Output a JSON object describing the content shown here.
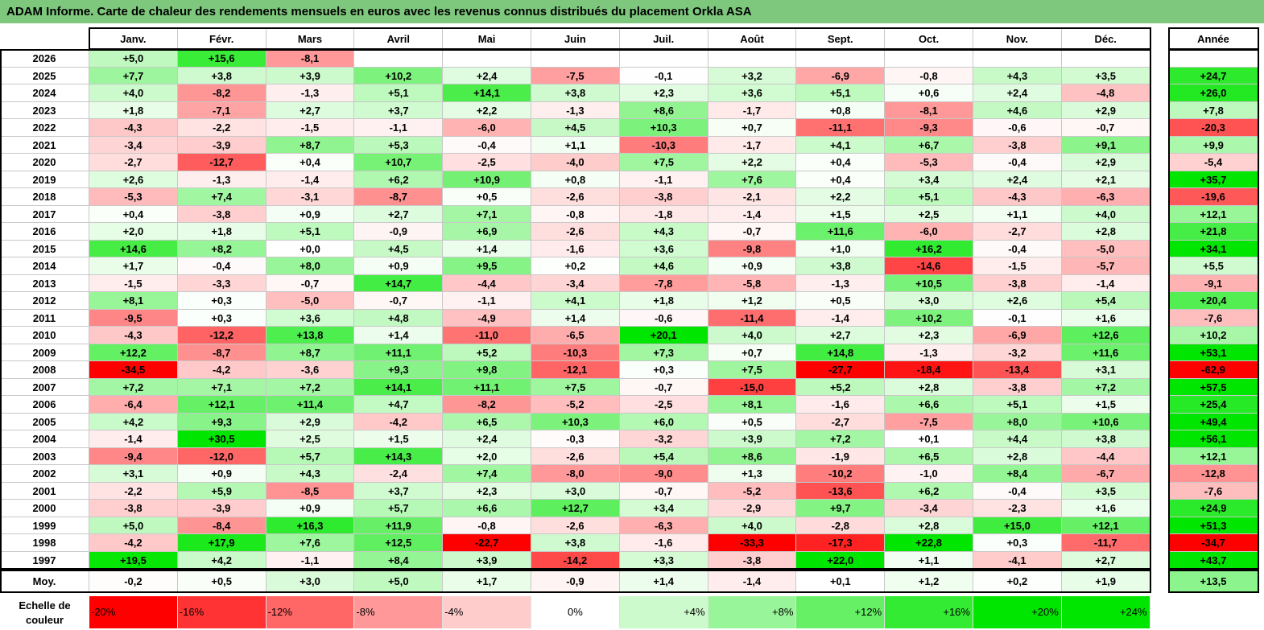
{
  "title": "ADAM Informe. Carte de chaleur des rendements mensuels en euros avec les revenus connus distribués du placement Orkla ASA",
  "chart_data": {
    "type": "heatmap",
    "columns": [
      "Janv.",
      "Févr.",
      "Mars",
      "Avril",
      "Mai",
      "Juin",
      "Juil.",
      "Août",
      "Sept.",
      "Oct.",
      "Nov.",
      "Déc."
    ],
    "year_header": "Année",
    "rows": [
      {
        "year": "2026",
        "values": [
          "+5,0",
          "+15,6",
          "-8,1",
          "",
          "",
          "",
          "",
          "",
          "",
          "",
          "",
          ""
        ],
        "annual": ""
      },
      {
        "year": "2025",
        "values": [
          "+7,7",
          "+3,8",
          "+3,9",
          "+10,2",
          "+2,4",
          "-7,5",
          "-0,1",
          "+3,2",
          "-6,9",
          "-0,8",
          "+4,3",
          "+3,5"
        ],
        "annual": "+24,7"
      },
      {
        "year": "2024",
        "values": [
          "+4,0",
          "-8,2",
          "-1,3",
          "+5,1",
          "+14,1",
          "+3,8",
          "+2,3",
          "+3,6",
          "+5,1",
          "+0,6",
          "+2,4",
          "-4,8"
        ],
        "annual": "+26,0"
      },
      {
        "year": "2023",
        "values": [
          "+1,8",
          "-7,1",
          "+2,7",
          "+3,7",
          "+2,2",
          "-1,3",
          "+8,6",
          "-1,7",
          "+0,8",
          "-8,1",
          "+4,6",
          "+2,9"
        ],
        "annual": "+7,8"
      },
      {
        "year": "2022",
        "values": [
          "-4,3",
          "-2,2",
          "-1,5",
          "-1,1",
          "-6,0",
          "+4,5",
          "+10,3",
          "+0,7",
          "-11,1",
          "-9,3",
          "-0,6",
          "-0,7"
        ],
        "annual": "-20,3"
      },
      {
        "year": "2021",
        "values": [
          "-3,4",
          "-3,9",
          "+8,7",
          "+5,3",
          "-0,4",
          "+1,1",
          "-10,3",
          "-1,7",
          "+4,1",
          "+6,7",
          "-3,8",
          "+9,1"
        ],
        "annual": "+9,9"
      },
      {
        "year": "2020",
        "values": [
          "-2,7",
          "-12,7",
          "+0,4",
          "+10,7",
          "-2,5",
          "-4,0",
          "+7,5",
          "+2,2",
          "+0,4",
          "-5,3",
          "-0,4",
          "+2,9"
        ],
        "annual": "-5,4"
      },
      {
        "year": "2019",
        "values": [
          "+2,6",
          "-1,3",
          "-1,4",
          "+6,2",
          "+10,9",
          "+0,8",
          "-1,1",
          "+7,6",
          "+0,4",
          "+3,4",
          "+2,4",
          "+2,1"
        ],
        "annual": "+35,7"
      },
      {
        "year": "2018",
        "values": [
          "-5,3",
          "+7,4",
          "-3,1",
          "-8,7",
          "+0,5",
          "-2,6",
          "-3,8",
          "-2,1",
          "+2,2",
          "+5,1",
          "-4,3",
          "-6,3"
        ],
        "annual": "-19,6"
      },
      {
        "year": "2017",
        "values": [
          "+0,4",
          "-3,8",
          "+0,9",
          "+2,7",
          "+7,1",
          "-0,8",
          "-1,8",
          "-1,4",
          "+1,5",
          "+2,5",
          "+1,1",
          "+4,0"
        ],
        "annual": "+12,1"
      },
      {
        "year": "2016",
        "values": [
          "+2,0",
          "+1,8",
          "+5,1",
          "-0,9",
          "+6,9",
          "-2,6",
          "+4,3",
          "-0,7",
          "+11,6",
          "-6,0",
          "-2,7",
          "+2,8"
        ],
        "annual": "+21,8"
      },
      {
        "year": "2015",
        "values": [
          "+14,6",
          "+8,2",
          "+0,0",
          "+4,5",
          "+1,4",
          "-1,6",
          "+3,6",
          "-9,8",
          "+1,0",
          "+16,2",
          "-0,4",
          "-5,0"
        ],
        "annual": "+34,1"
      },
      {
        "year": "2014",
        "values": [
          "+1,7",
          "-0,4",
          "+8,0",
          "+0,9",
          "+9,5",
          "+0,2",
          "+4,6",
          "+0,9",
          "+3,8",
          "-14,6",
          "-1,5",
          "-5,7"
        ],
        "annual": "+5,5"
      },
      {
        "year": "2013",
        "values": [
          "-1,5",
          "-3,3",
          "-0,7",
          "+14,7",
          "-4,4",
          "-3,4",
          "-7,8",
          "-5,8",
          "-1,3",
          "+10,5",
          "-3,8",
          "-1,4"
        ],
        "annual": "-9,1"
      },
      {
        "year": "2012",
        "values": [
          "+8,1",
          "+0,3",
          "-5,0",
          "-0,7",
          "-1,1",
          "+4,1",
          "+1,8",
          "+1,2",
          "+0,5",
          "+3,0",
          "+2,6",
          "+5,4"
        ],
        "annual": "+20,4"
      },
      {
        "year": "2011",
        "values": [
          "-9,5",
          "+0,3",
          "+3,6",
          "+4,8",
          "-4,9",
          "+1,4",
          "-0,6",
          "-11,4",
          "-1,4",
          "+10,2",
          "-0,1",
          "+1,6"
        ],
        "annual": "-7,6"
      },
      {
        "year": "2010",
        "values": [
          "-4,3",
          "-12,2",
          "+13,8",
          "+1,4",
          "-11,0",
          "-6,5",
          "+20,1",
          "+4,0",
          "+2,7",
          "+2,3",
          "-6,9",
          "+12,6"
        ],
        "annual": "+10,2"
      },
      {
        "year": "2009",
        "values": [
          "+12,2",
          "-8,7",
          "+8,7",
          "+11,1",
          "+5,2",
          "-10,3",
          "+7,3",
          "+0,7",
          "+14,8",
          "-1,3",
          "-3,2",
          "+11,6"
        ],
        "annual": "+53,1"
      },
      {
        "year": "2008",
        "values": [
          "-34,5",
          "-4,2",
          "-3,6",
          "+9,3",
          "+9,8",
          "-12,1",
          "+0,3",
          "+7,5",
          "-27,7",
          "-18,4",
          "-13,4",
          "+3,1"
        ],
        "annual": "-62,9"
      },
      {
        "year": "2007",
        "values": [
          "+7,2",
          "+7,1",
          "+7,2",
          "+14,1",
          "+11,1",
          "+7,5",
          "-0,7",
          "-15,0",
          "+5,2",
          "+2,8",
          "-3,8",
          "+7,2"
        ],
        "annual": "+57,5"
      },
      {
        "year": "2006",
        "values": [
          "-6,4",
          "+12,1",
          "+11,4",
          "+4,7",
          "-8,2",
          "-5,2",
          "-2,5",
          "+8,1",
          "-1,6",
          "+6,6",
          "+5,1",
          "+1,5"
        ],
        "annual": "+25,4"
      },
      {
        "year": "2005",
        "values": [
          "+4,2",
          "+9,3",
          "+2,9",
          "-4,2",
          "+6,5",
          "+10,3",
          "+6,0",
          "+0,5",
          "-2,7",
          "-7,5",
          "+8,0",
          "+10,6"
        ],
        "annual": "+49,4"
      },
      {
        "year": "2004",
        "values": [
          "-1,4",
          "+30,5",
          "+2,5",
          "+1,5",
          "+2,4",
          "-0,3",
          "-3,2",
          "+3,9",
          "+7,2",
          "+0,1",
          "+4,4",
          "+3,8"
        ],
        "annual": "+56,1"
      },
      {
        "year": "2003",
        "values": [
          "-9,4",
          "-12,0",
          "+5,7",
          "+14,3",
          "+2,0",
          "-2,6",
          "+5,4",
          "+8,6",
          "-1,9",
          "+6,5",
          "+2,8",
          "-4,4"
        ],
        "annual": "+12,1"
      },
      {
        "year": "2002",
        "values": [
          "+3,1",
          "+0,9",
          "+4,3",
          "-2,4",
          "+7,4",
          "-8,0",
          "-9,0",
          "+1,3",
          "-10,2",
          "-1,0",
          "+8,4",
          "-6,7"
        ],
        "annual": "-12,8"
      },
      {
        "year": "2001",
        "values": [
          "-2,2",
          "+5,9",
          "-8,5",
          "+3,7",
          "+2,3",
          "+3,0",
          "-0,7",
          "-5,2",
          "-13,6",
          "+6,2",
          "-0,4",
          "+3,5"
        ],
        "annual": "-7,6"
      },
      {
        "year": "2000",
        "values": [
          "-3,8",
          "-3,9",
          "+0,9",
          "+5,7",
          "+6,6",
          "+12,7",
          "+3,4",
          "-2,9",
          "+9,7",
          "-3,4",
          "-2,3",
          "+1,6"
        ],
        "annual": "+24,9"
      },
      {
        "year": "1999",
        "values": [
          "+5,0",
          "-8,4",
          "+16,3",
          "+11,9",
          "-0,8",
          "-2,6",
          "-6,3",
          "+4,0",
          "-2,8",
          "+2,8",
          "+15,0",
          "+12,1"
        ],
        "annual": "+51,3"
      },
      {
        "year": "1998",
        "values": [
          "-4,2",
          "+17,9",
          "+7,6",
          "+12,5",
          "-22,7",
          "+3,8",
          "-1,6",
          "-33,3",
          "-17,3",
          "+22,8",
          "+0,3",
          "-11,7"
        ],
        "annual": "-34,7"
      },
      {
        "year": "1997",
        "values": [
          "+19,5",
          "+4,2",
          "-1,1",
          "+8,4",
          "+3,9",
          "-14,2",
          "+3,3",
          "-3,8",
          "+22,0",
          "+1,1",
          "-4,1",
          "+2,7"
        ],
        "annual": "+43,7"
      }
    ],
    "average": {
      "label": "Moy.",
      "values": [
        "-0,2",
        "+0,5",
        "+3,0",
        "+5,0",
        "+1,7",
        "-0,9",
        "+1,4",
        "-1,4",
        "+0,1",
        "+1,2",
        "+0,2",
        "+1,9"
      ],
      "annual": "+13,5"
    },
    "scale": {
      "label_line1": "Echelle de",
      "label_line2": "couleur",
      "items": [
        "-20%",
        "-16%",
        "-12%",
        "-8%",
        "-4%",
        "0%",
        "+4%",
        "+8%",
        "+12%",
        "+16%",
        "+20%",
        "+24%"
      ]
    },
    "colors": {
      "negative_max": "#ff0000",
      "neutral": "#ffffff",
      "positive_max": "#00e000",
      "title_bg": "#7ec87e"
    }
  }
}
